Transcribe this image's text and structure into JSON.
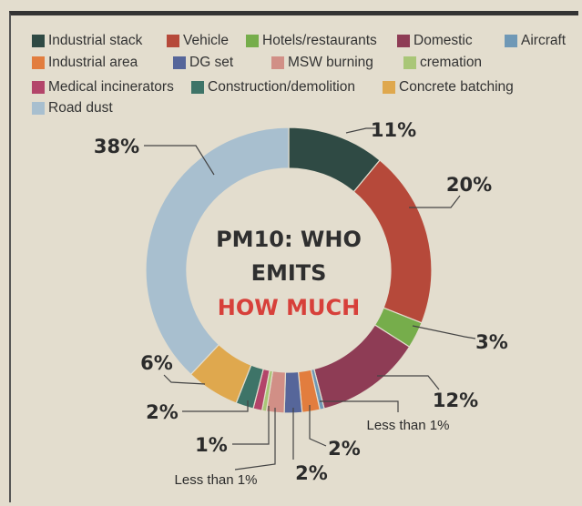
{
  "chart_data": {
    "type": "donut",
    "title_line1": "PM10: WHO",
    "title_line2": "EMITS",
    "title_line3": "HOW MUCH",
    "legend": [
      {
        "name": "Industrial stack",
        "color": "#2f4a44"
      },
      {
        "name": "Vehicle",
        "color": "#b6493a"
      },
      {
        "name": "Hotels/restaurants",
        "color": "#76ad4b"
      },
      {
        "name": "Domestic",
        "color": "#8e3c55"
      },
      {
        "name": "Aircraft",
        "color": "#6f98b6"
      },
      {
        "name": "Industrial area",
        "color": "#e27d3e"
      },
      {
        "name": "DG set",
        "color": "#56669a"
      },
      {
        "name": "MSW burning",
        "color": "#d18f86"
      },
      {
        "name": "cremation",
        "color": "#a9c677"
      },
      {
        "name": "Medical incinerators",
        "color": "#b3456a"
      },
      {
        "name": "Construction/demolition",
        "color": "#3e7468"
      },
      {
        "name": "Concrete batching",
        "color": "#dfa84e"
      },
      {
        "name": "Road dust",
        "color": "#a8bfcf"
      }
    ],
    "slices": [
      {
        "name": "Industrial stack",
        "value": 11,
        "label": "11%"
      },
      {
        "name": "Vehicle",
        "value": 20,
        "label": "20%"
      },
      {
        "name": "Hotels/restaurants",
        "value": 3,
        "label": "3%"
      },
      {
        "name": "Domestic",
        "value": 12,
        "label": "12%"
      },
      {
        "name": "Aircraft",
        "value": 0.5,
        "label": "Less than 1%"
      },
      {
        "name": "Industrial area",
        "value": 2,
        "label": "2%"
      },
      {
        "name": "DG set",
        "value": 2,
        "label": "2%"
      },
      {
        "name": "MSW burning",
        "value": 2,
        "label": ""
      },
      {
        "name": "cremation",
        "value": 0.5,
        "label": "Less than 1%"
      },
      {
        "name": "Medical incinerators",
        "value": 1,
        "label": "1%"
      },
      {
        "name": "Construction/demolition",
        "value": 2,
        "label": "2%"
      },
      {
        "name": "Concrete batching",
        "value": 6,
        "label": "6%"
      },
      {
        "name": "Road dust",
        "value": 38,
        "label": "38%"
      }
    ]
  },
  "colors": {
    "background": "#e3ddce",
    "title_dark": "#2f2f2f",
    "title_red": "#d7403a"
  }
}
